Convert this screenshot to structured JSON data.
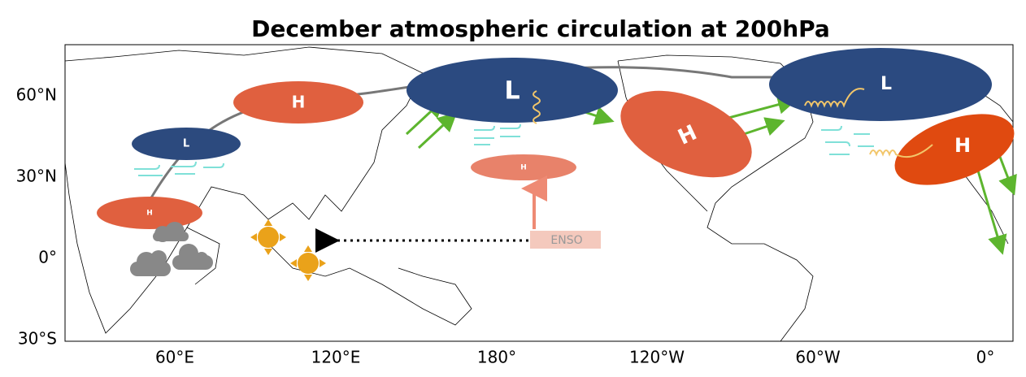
{
  "title": "December atmospheric circulation at 200hPa",
  "axes": {
    "lat_ticks": [
      "60°N",
      "30°N",
      "0°",
      "30°S"
    ],
    "lon_ticks": [
      "60°E",
      "120°E",
      "180°",
      "120°W",
      "60°W",
      "0°"
    ]
  },
  "systems": [
    {
      "label": "H"
    },
    {
      "label": "L"
    },
    {
      "label": "H"
    },
    {
      "label": "L"
    },
    {
      "label": "H"
    },
    {
      "label": "H"
    },
    {
      "label": "L"
    },
    {
      "label": "H"
    }
  ],
  "enso": "ENSO"
}
